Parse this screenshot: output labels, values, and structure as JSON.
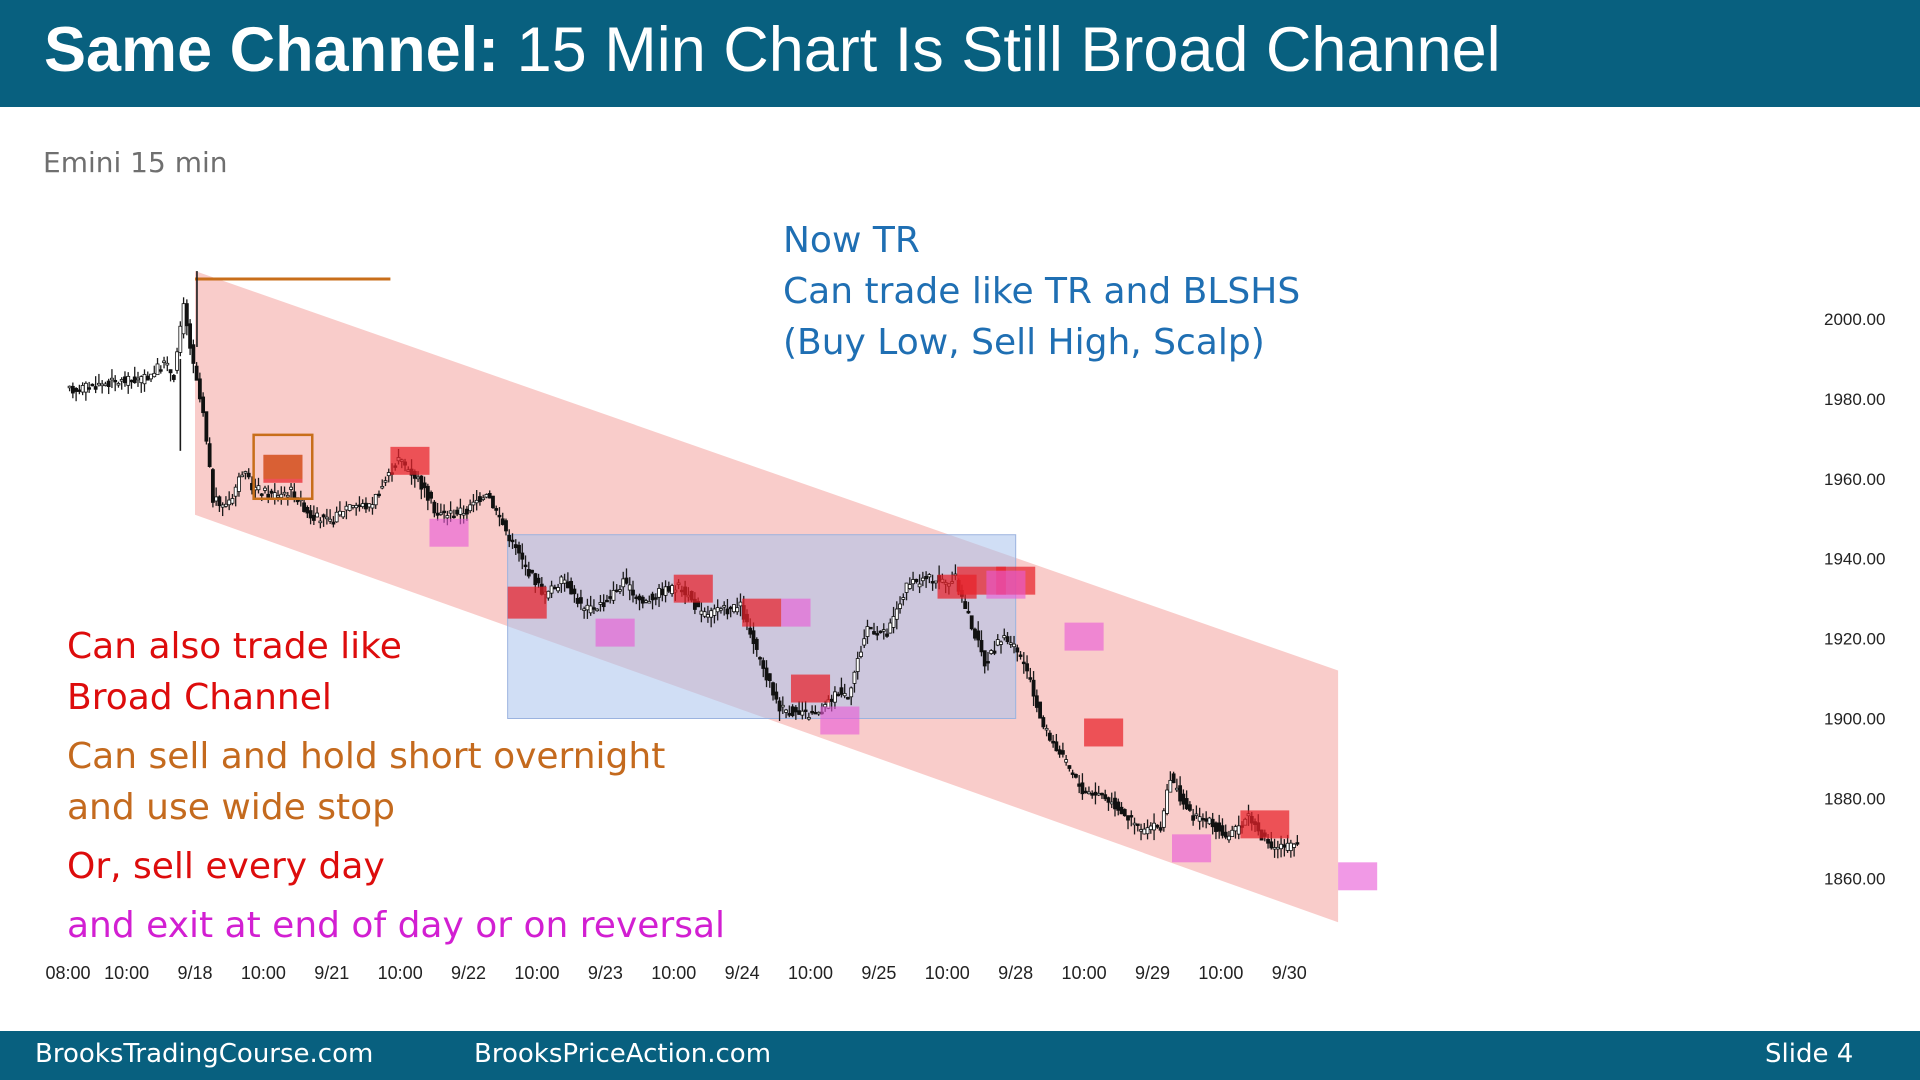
{
  "header": {
    "title_bold": "Same Channel:",
    "title_rest": "15 Min Chart Is Still Broad Channel"
  },
  "footer": {
    "left": "BrooksTradingCourse.com",
    "center": "BrooksPriceAction.com",
    "slide": "Slide  4"
  },
  "colors": {
    "header_bg": "#08607f",
    "channel": "#f5aaa6",
    "range": "#a9c2ec",
    "bear_bar": "#e8212a",
    "bull_bar": "#e85ad6",
    "wedge": "#c86e1a",
    "tr_text": "#1f6fb3",
    "red_text": "#dd0c0c",
    "orange_text": "#c46a1e",
    "magenta_text": "#d21fd2"
  },
  "notes": {
    "tr": [
      "Now TR",
      "Can trade like TR and BLSHS",
      "(Buy Low, Sell High, Scalp)"
    ],
    "broad": [
      "Can also trade like",
      "Broad Channel"
    ],
    "hold": [
      "Can sell and hold short overnight",
      "and use wide stop"
    ],
    "daily": "Or, sell every day",
    "exit": "and exit at end of day or on reversal"
  },
  "chart_data": {
    "type": "candlestick",
    "title": "Emini 15 min",
    "y_ticks": [
      "2000.00",
      "1980.00",
      "1960.00",
      "1940.00",
      "1920.00",
      "1900.00",
      "1880.00",
      "1860.00"
    ],
    "y_tick_values": [
      2000,
      1980,
      1960,
      1940,
      1920,
      1900,
      1880,
      1860
    ],
    "ylim": [
      1846,
      2014
    ],
    "x_ticks": [
      "08:00",
      "10:00",
      "9/18",
      "10:00",
      "9/21",
      "10:00",
      "9/22",
      "10:00",
      "9/23",
      "10:00",
      "9/24",
      "10:00",
      "9/25",
      "10:00",
      "9/28",
      "10:00",
      "9/29",
      "10:00",
      "9/30"
    ],
    "x_tick_index": [
      0,
      6,
      13,
      20,
      27,
      34,
      41,
      48,
      55,
      62,
      69,
      76,
      83,
      90,
      97,
      104,
      111,
      118,
      125
    ],
    "x_count": 126,
    "path_index": [
      0,
      4,
      8,
      10,
      11,
      12,
      13,
      14,
      15,
      16,
      17,
      18,
      19,
      21,
      23,
      25,
      27,
      29,
      31,
      33,
      34,
      36,
      38,
      41,
      43,
      45,
      47,
      49,
      51,
      53,
      55,
      57,
      59,
      61,
      63,
      65,
      67,
      69,
      71,
      73,
      75,
      77,
      79,
      80,
      82,
      84,
      86,
      88,
      89,
      90,
      91,
      92,
      94,
      96,
      98,
      100,
      102,
      104,
      106,
      108,
      110,
      112,
      113,
      115,
      117,
      119,
      121,
      123,
      125
    ],
    "path_value": [
      1982,
      1984,
      1985,
      1989,
      1986,
      2003,
      1988,
      1976,
      1955,
      1953,
      1956,
      1962,
      1958,
      1956,
      1957,
      1951,
      1949,
      1954,
      1953,
      1961,
      1965,
      1960,
      1951,
      1952,
      1957,
      1947,
      1938,
      1931,
      1935,
      1927,
      1929,
      1934,
      1929,
      1932,
      1933,
      1926,
      1927,
      1928,
      1914,
      1903,
      1901,
      1901,
      1907,
      1906,
      1923,
      1921,
      1933,
      1935,
      1935,
      1934,
      1935,
      1928,
      1914,
      1921,
      1914,
      1898,
      1890,
      1882,
      1881,
      1877,
      1872,
      1873,
      1885,
      1876,
      1874,
      1870,
      1876,
      1868,
      1868
    ],
    "channel": {
      "top": [
        [
          13,
          2012
        ],
        [
          130,
          1912
        ]
      ],
      "bottom": [
        [
          13,
          1951
        ],
        [
          130,
          1849
        ]
      ]
    },
    "trading_range": {
      "x": [
        45,
        97
      ],
      "y": [
        1900,
        1946
      ]
    },
    "wedge_line": {
      "x": [
        13,
        33
      ],
      "y": 2010
    },
    "wedge_box": {
      "x": [
        19,
        25
      ],
      "y": [
        1955,
        1971
      ]
    },
    "bear_boxes": [
      {
        "x": [
          20,
          24
        ],
        "y": [
          1959,
          1966
        ]
      },
      {
        "x": [
          33,
          37
        ],
        "y": [
          1961,
          1968
        ]
      },
      {
        "x": [
          45,
          49
        ],
        "y": [
          1925,
          1933
        ]
      },
      {
        "x": [
          62,
          66
        ],
        "y": [
          1929,
          1936
        ]
      },
      {
        "x": [
          69,
          73
        ],
        "y": [
          1923,
          1930
        ]
      },
      {
        "x": [
          74,
          78
        ],
        "y": [
          1904,
          1911
        ]
      },
      {
        "x": [
          89,
          93
        ],
        "y": [
          1930,
          1936
        ]
      },
      {
        "x": [
          91,
          96
        ],
        "y": [
          1931,
          1938
        ]
      },
      {
        "x": [
          95,
          99
        ],
        "y": [
          1931,
          1938
        ]
      },
      {
        "x": [
          104,
          108
        ],
        "y": [
          1893,
          1900
        ]
      },
      {
        "x": [
          120,
          125
        ],
        "y": [
          1870,
          1877
        ]
      }
    ],
    "bull_boxes": [
      {
        "x": [
          37,
          41
        ],
        "y": [
          1943,
          1950
        ]
      },
      {
        "x": [
          54,
          58
        ],
        "y": [
          1918,
          1925
        ]
      },
      {
        "x": [
          73,
          76
        ],
        "y": [
          1923,
          1930
        ]
      },
      {
        "x": [
          77,
          81
        ],
        "y": [
          1896,
          1903
        ]
      },
      {
        "x": [
          94,
          98
        ],
        "y": [
          1930,
          1937
        ]
      },
      {
        "x": [
          102,
          106
        ],
        "y": [
          1917,
          1924
        ]
      },
      {
        "x": [
          113,
          117
        ],
        "y": [
          1864,
          1871
        ]
      },
      {
        "x": [
          130,
          134
        ],
        "y": [
          1857,
          1864
        ]
      }
    ]
  }
}
